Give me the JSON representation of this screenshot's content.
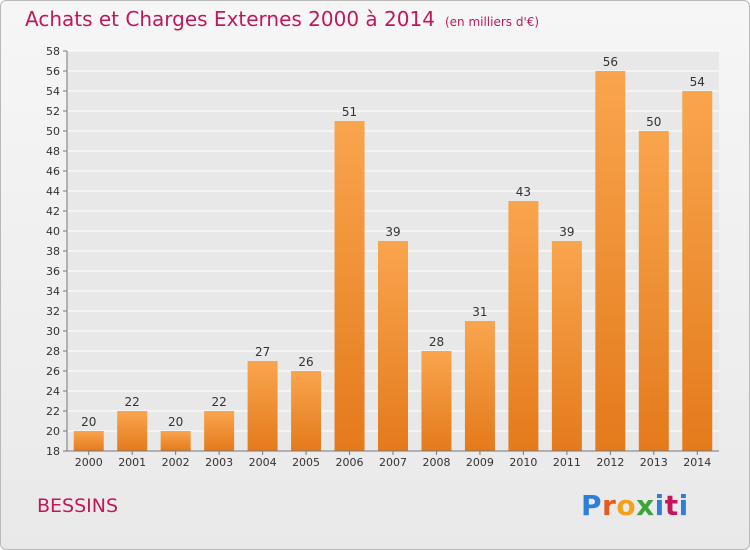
{
  "page": {
    "title": "Achats et Charges Externes 2000 à 2014",
    "subtitle": "(en milliers d'€)",
    "place": "BESSINS",
    "logo_text": "Proxiti",
    "logo_colors": [
      "#2f7fd6",
      "#e65a1e",
      "#f2a21a",
      "#3aa63a",
      "#2f7fd6",
      "#c2185b",
      "#2f7fd6"
    ]
  },
  "colors": {
    "title": "#c2185b",
    "bar_light": "#f9a54e",
    "bar_dark": "#e47a1c",
    "grid": "#ffffff",
    "text": "#333333"
  },
  "chart_data": {
    "type": "bar",
    "title": "Achats et Charges Externes 2000 à 2014",
    "subtitle": "(en milliers d'€)",
    "xlabel": "",
    "ylabel": "",
    "categories": [
      "2000",
      "2001",
      "2002",
      "2003",
      "2004",
      "2005",
      "2006",
      "2007",
      "2008",
      "2009",
      "2010",
      "2011",
      "2012",
      "2013",
      "2014"
    ],
    "values": [
      20,
      22,
      20,
      22,
      27,
      26,
      51,
      39,
      28,
      31,
      43,
      39,
      56,
      50,
      54
    ],
    "ylim": [
      18,
      58
    ],
    "ytick_step": 2,
    "grid": true,
    "data_labels": true
  }
}
